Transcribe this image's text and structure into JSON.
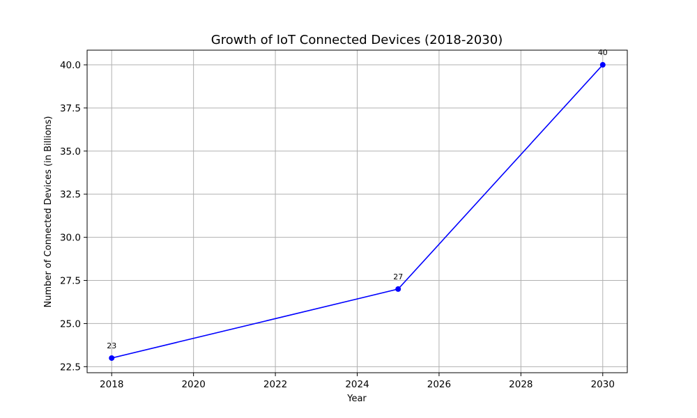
{
  "chart_data": {
    "type": "line",
    "title": "Growth of IoT Connected Devices (2018-2030)",
    "xlabel": "Year",
    "ylabel": "Number of Connected Devices (in Billions)",
    "xlim": [
      2017.4,
      2030.6
    ],
    "ylim": [
      22.15,
      40.85
    ],
    "xticks": [
      2018,
      2020,
      2022,
      2024,
      2026,
      2028,
      2030
    ],
    "xtick_labels": [
      "2018",
      "2020",
      "2022",
      "2024",
      "2026",
      "2028",
      "2030"
    ],
    "yticks": [
      22.5,
      25.0,
      27.5,
      30.0,
      32.5,
      35.0,
      37.5,
      40.0
    ],
    "ytick_labels": [
      "22.5",
      "25.0",
      "27.5",
      "30.0",
      "32.5",
      "35.0",
      "37.5",
      "40.0"
    ],
    "grid": true,
    "series": [
      {
        "x": [
          2018,
          2025,
          2030
        ],
        "values": [
          23,
          27,
          40
        ],
        "data_labels": [
          "23",
          "27",
          "40"
        ],
        "color": "#0000ff",
        "marker": "circle"
      }
    ]
  }
}
